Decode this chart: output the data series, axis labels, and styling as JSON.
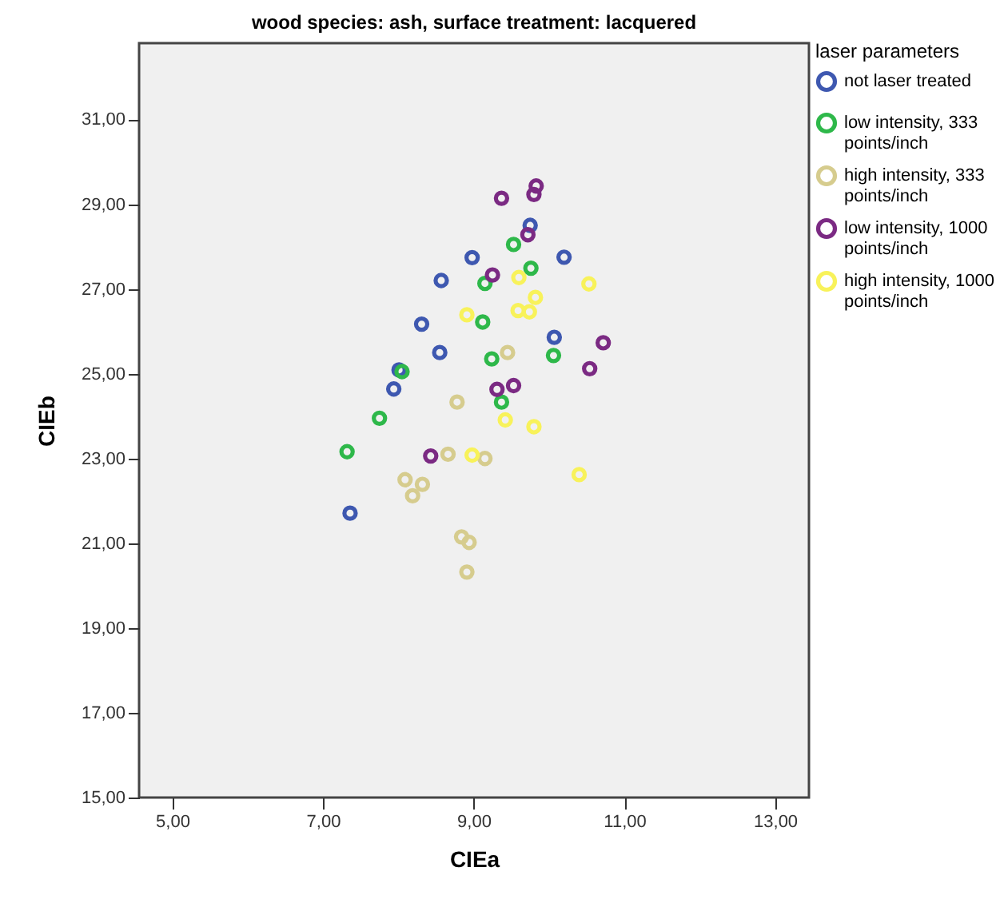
{
  "chart_data": {
    "type": "scatter",
    "title": "wood species: ash, surface treatment: lacquered",
    "xlabel": "CIEa",
    "ylabel": "CIEb",
    "legend_title": "laser parameters",
    "legend": "right",
    "marker": "circle",
    "grid": false,
    "xlim": [
      4.56,
      13.45
    ],
    "ylim": [
      15,
      32.8
    ],
    "xticks": [
      {
        "value": 5,
        "label": "5,00"
      },
      {
        "value": 7,
        "label": "7,00"
      },
      {
        "value": 9,
        "label": "9,00"
      },
      {
        "value": 11,
        "label": "11,00"
      },
      {
        "value": 13,
        "label": "13,00"
      }
    ],
    "yticks": [
      {
        "value": 15,
        "label": "15,00"
      },
      {
        "value": 17,
        "label": "17,00"
      },
      {
        "value": 19,
        "label": "19,00"
      },
      {
        "value": 21,
        "label": "21,00"
      },
      {
        "value": 23,
        "label": "23,00"
      },
      {
        "value": 25,
        "label": "25,00"
      },
      {
        "value": 27,
        "label": "27,00"
      },
      {
        "value": 29,
        "label": "29,00"
      },
      {
        "value": 31,
        "label": "31,00"
      }
    ],
    "series": [
      {
        "name": "not laser treated",
        "color": "#3e58b0",
        "x": [
          8.98,
          8.57,
          8.31,
          8.55,
          8.01,
          7.94,
          7.36,
          10.2,
          9.75,
          10.07
        ],
        "values": [
          27.74,
          27.2,
          26.17,
          25.5,
          25.09,
          24.64,
          21.71,
          27.75,
          28.5,
          25.86
        ]
      },
      {
        "name": "low intensity, 333 points/inch",
        "color": "#2eb84a",
        "x": [
          8.05,
          7.75,
          7.32,
          9.53,
          9.15,
          9.76,
          9.12,
          9.24,
          10.06,
          9.37
        ],
        "values": [
          25.05,
          23.95,
          23.16,
          28.05,
          27.13,
          27.49,
          26.22,
          25.35,
          25.43,
          24.33
        ]
      },
      {
        "name": "high intensity, 333 points/inch",
        "color": "#d6cc8e",
        "x": [
          8.78,
          8.66,
          8.09,
          8.32,
          9.15,
          8.19,
          8.84,
          8.94,
          8.91,
          9.45
        ],
        "values": [
          24.33,
          23.1,
          22.5,
          22.39,
          23.0,
          22.12,
          21.15,
          21.02,
          20.32,
          25.5
        ]
      },
      {
        "name": "low intensity, 1000 points/inch",
        "color": "#7b2a83",
        "x": [
          8.43,
          9.37,
          9.83,
          9.8,
          9.72,
          9.25,
          10.72,
          10.54,
          9.31,
          9.53
        ],
        "values": [
          23.06,
          29.14,
          29.43,
          29.23,
          28.28,
          27.33,
          25.73,
          25.12,
          24.63,
          24.72
        ]
      },
      {
        "name": "high intensity, 1000 points/inch",
        "color": "#f8f25a",
        "x": [
          8.91,
          8.98,
          10.4,
          9.6,
          10.53,
          9.82,
          9.59,
          9.74,
          9.42,
          9.8
        ],
        "values": [
          26.39,
          23.08,
          22.62,
          27.27,
          27.12,
          26.8,
          26.49,
          26.46,
          23.91,
          23.75
        ]
      }
    ]
  }
}
